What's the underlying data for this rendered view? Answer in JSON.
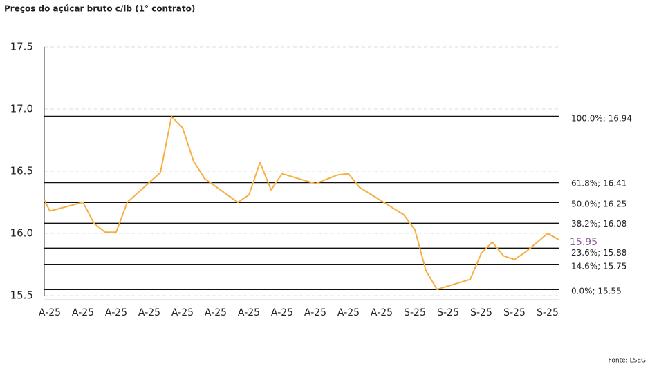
{
  "chart_data": {
    "type": "line",
    "title": "Preços do açúcar bruto c/lb (1° contrato)",
    "source": "Fonte: LSEG",
    "series": [
      {
        "color": "#f5b041",
        "x": [
          0,
          0.5,
          3.5,
          4.5,
          5.5,
          6.5,
          7.5,
          10.5,
          11.5,
          12.5,
          13.5,
          14.5,
          17.5,
          18.5,
          19.5,
          20.5,
          21.5,
          24.5,
          26.5,
          27.5,
          28.5,
          32.5,
          33.5,
          34.5,
          35.5,
          38.5,
          39.5,
          40.5,
          41.5,
          42.5,
          43.5,
          45.5,
          46.5
        ],
        "values": [
          16.27,
          16.18,
          16.25,
          16.08,
          16.01,
          16.01,
          16.25,
          16.49,
          16.94,
          16.85,
          16.58,
          16.44,
          16.25,
          16.31,
          16.57,
          16.35,
          16.48,
          16.4,
          16.47,
          16.48,
          16.37,
          16.15,
          16.03,
          15.7,
          15.55,
          15.63,
          15.84,
          15.93,
          15.82,
          15.79,
          15.85,
          16.0,
          15.95
        ]
      }
    ],
    "last_value": 15.95,
    "last_value_color": "#8e5ea2",
    "levels": [
      {
        "value": 16.94,
        "label": "100.0%; 16.94"
      },
      {
        "value": 16.41,
        "label": "61.8%; 16.41"
      },
      {
        "value": 16.25,
        "label": "50.0%; 16.25"
      },
      {
        "value": 16.08,
        "label": "38.2%; 16.08"
      },
      {
        "value": 15.88,
        "label": "23.6%; 15.88"
      },
      {
        "value": 15.75,
        "label": "14.6%; 15.75"
      },
      {
        "value": 15.55,
        "label": "0.0%; 15.55"
      }
    ],
    "xlim": [
      0,
      47
    ],
    "xticks": [
      {
        "value": 0.5,
        "label": "A-25"
      },
      {
        "value": 3.5,
        "label": "A-25"
      },
      {
        "value": 6.5,
        "label": "A-25"
      },
      {
        "value": 9.5,
        "label": "A-25"
      },
      {
        "value": 12.5,
        "label": "A-25"
      },
      {
        "value": 15.5,
        "label": "A-25"
      },
      {
        "value": 18.5,
        "label": "A-25"
      },
      {
        "value": 21.5,
        "label": "A-25"
      },
      {
        "value": 24.5,
        "label": "A-25"
      },
      {
        "value": 27.5,
        "label": "A-25"
      },
      {
        "value": 30.5,
        "label": "A-25"
      },
      {
        "value": 33.5,
        "label": "S-25"
      },
      {
        "value": 36.5,
        "label": "S-25"
      },
      {
        "value": 39.5,
        "label": "S-25"
      },
      {
        "value": 42.5,
        "label": "S-25"
      },
      {
        "value": 45.5,
        "label": "S-25"
      }
    ],
    "ylim": [
      15.5,
      17.5
    ],
    "yticks": [
      15.5,
      {
        "value": 16,
        "label": "16.0"
      },
      16.5,
      {
        "value": 17,
        "label": "17.0"
      },
      17.5
    ],
    "grid": true
  }
}
